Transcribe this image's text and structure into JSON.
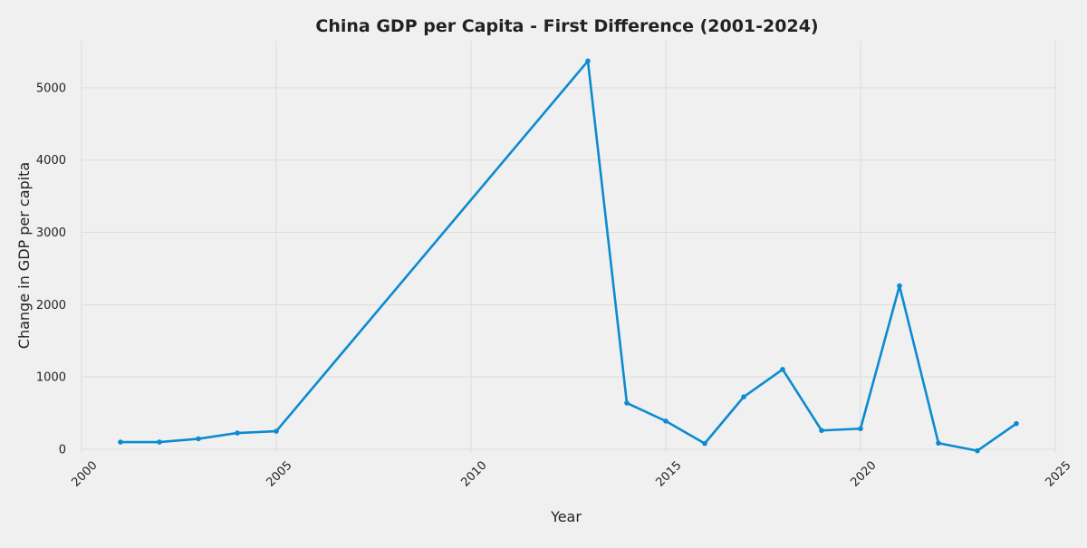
{
  "chart_data": {
    "type": "line",
    "title": "China GDP per Capita - First Difference (2001-2024)",
    "xlabel": "Year",
    "ylabel": "Change in GDP per capita",
    "xlim": [
      2000,
      2025
    ],
    "ylim": [
      -50,
      5650
    ],
    "x_ticks": [
      2000,
      2005,
      2010,
      2015,
      2020,
      2025
    ],
    "y_ticks": [
      0,
      1000,
      2000,
      3000,
      4000,
      5000
    ],
    "grid": true,
    "legend": "none",
    "line_color": "#0b8bd0",
    "series": [
      {
        "x": [
          2001,
          2002,
          2003,
          2004,
          2005,
          2013,
          2014,
          2015,
          2016,
          2017,
          2018,
          2019,
          2020,
          2021,
          2022,
          2023,
          2024
        ],
        "values": [
          100,
          100,
          145,
          225,
          250,
          5370,
          640,
          390,
          80,
          725,
          1105,
          260,
          285,
          2260,
          85,
          -20,
          355
        ]
      }
    ]
  }
}
